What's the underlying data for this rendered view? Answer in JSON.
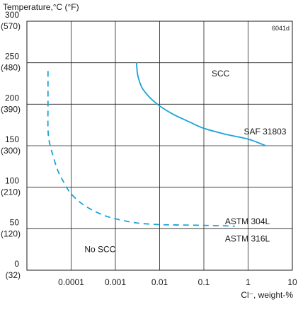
{
  "chart_data": {
    "type": "line",
    "code": "6041d",
    "ylabel": "Temperature,°C (°F)",
    "xlabel": "Cl⁻, weight-%",
    "x_scale": "log",
    "xlim": [
      1e-05,
      10
    ],
    "ylim": [
      0,
      300
    ],
    "grid": true,
    "x_ticks": [
      {
        "value": 0.0001,
        "label": "0.0001"
      },
      {
        "value": 0.001,
        "label": "0.001"
      },
      {
        "value": 0.01,
        "label": "0.01"
      },
      {
        "value": 0.1,
        "label": "0.1"
      },
      {
        "value": 1,
        "label": "1"
      },
      {
        "value": 10,
        "label": "10"
      }
    ],
    "y_ticks": [
      {
        "value": 0,
        "label_c": "0",
        "label_f": "(32)"
      },
      {
        "value": 50,
        "label_c": "50",
        "label_f": "(120)"
      },
      {
        "value": 100,
        "label_c": "100",
        "label_f": "(210)"
      },
      {
        "value": 150,
        "label_c": "150",
        "label_f": "(300)"
      },
      {
        "value": 200,
        "label_c": "200",
        "label_f": "(390)"
      },
      {
        "value": 250,
        "label_c": "250",
        "label_f": "(480)"
      },
      {
        "value": 300,
        "label_c": "300",
        "label_f": "(570)"
      }
    ],
    "series": [
      {
        "name": "SAF 31803",
        "style": "solid",
        "color": "#1aa3d9",
        "points": [
          [
            0.003,
            250
          ],
          [
            0.0032,
            235
          ],
          [
            0.004,
            220
          ],
          [
            0.006,
            208
          ],
          [
            0.01,
            198
          ],
          [
            0.02,
            188
          ],
          [
            0.05,
            178
          ],
          [
            0.1,
            171
          ],
          [
            0.3,
            164
          ],
          [
            1,
            158
          ],
          [
            2.5,
            150
          ]
        ]
      },
      {
        "name": "ASTM 304L / ASTM 316L",
        "style": "dashed",
        "color": "#1aa3d9",
        "points": [
          [
            3e-05,
            240
          ],
          [
            3e-05,
            200
          ],
          [
            3e-05,
            170
          ],
          [
            3.2e-05,
            155
          ],
          [
            3.8e-05,
            140
          ],
          [
            5e-05,
            120
          ],
          [
            7e-05,
            105
          ],
          [
            0.0001,
            92
          ],
          [
            0.0002,
            78
          ],
          [
            0.0005,
            67
          ],
          [
            0.001,
            62
          ],
          [
            0.003,
            57
          ],
          [
            0.01,
            55
          ],
          [
            0.03,
            54.5
          ],
          [
            0.1,
            54
          ],
          [
            0.3,
            53.5
          ],
          [
            0.5,
            53
          ]
        ]
      }
    ],
    "annotations": [
      {
        "text": "SCC",
        "x": 0.15,
        "y": 237
      },
      {
        "text": "No SCC",
        "x": 0.0002,
        "y": 25
      },
      {
        "text": "SAF 31803",
        "x": 0.8,
        "y": 167
      },
      {
        "text": "ASTM 304L",
        "x": 0.3,
        "y": 59
      },
      {
        "text": "ASTM 316L",
        "x": 0.3,
        "y": 38
      }
    ]
  }
}
